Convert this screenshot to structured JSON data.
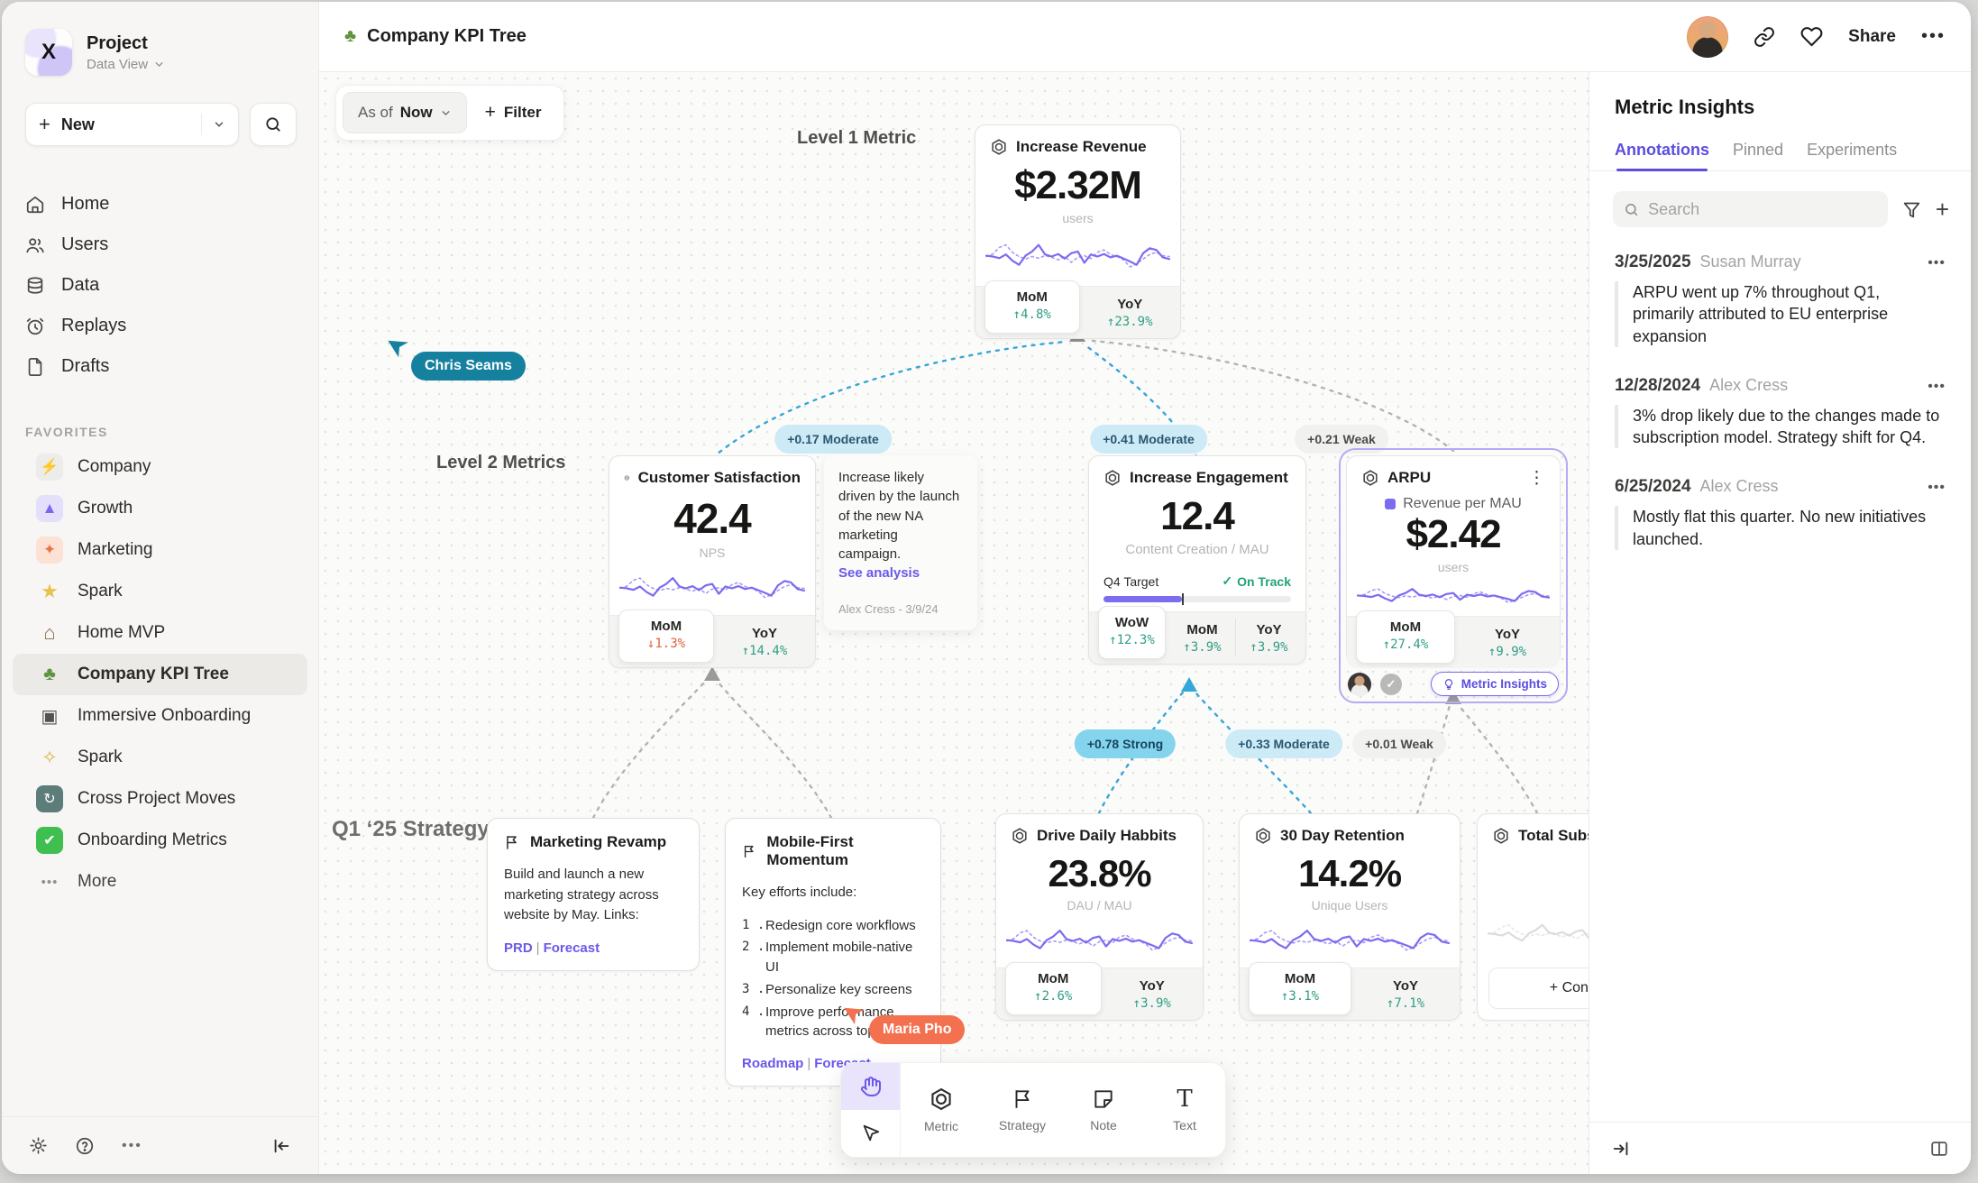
{
  "colors": {
    "accent": "#5b4de0",
    "spark_solid": "#7b6cf0",
    "spark_dashed": "#a79bf5",
    "positive": "#2f9e86",
    "negative": "#e2623c",
    "edge_blue": "#35a6d8",
    "edge_gray": "#b3b3b1",
    "cursor_teal": "#15819f",
    "cursor_orange": "#f3714e",
    "pill_moderate": "#cdeaf7",
    "pill_strong": "#84d4ee",
    "pill_weak": "#f1f1ef"
  },
  "sparkline": {
    "solid": [
      0.52,
      0.5,
      0.46,
      0.55,
      0.4,
      0.3,
      0.52,
      0.62,
      0.78,
      0.55,
      0.5,
      0.56,
      0.45,
      0.58,
      0.62,
      0.35,
      0.55,
      0.5,
      0.56,
      0.48,
      0.52,
      0.45,
      0.38,
      0.3,
      0.58,
      0.7,
      0.66,
      0.48,
      0.44
    ],
    "dashed": [
      0.5,
      0.56,
      0.72,
      0.78,
      0.6,
      0.5,
      0.44,
      0.5,
      0.46,
      0.52,
      0.48,
      0.42,
      0.5,
      0.36,
      0.48,
      0.52,
      0.45,
      0.6,
      0.66,
      0.55,
      0.5,
      0.42,
      0.25,
      0.32,
      0.44,
      0.55,
      0.6,
      0.52,
      0.5
    ]
  },
  "sidebar": {
    "project_title": "Project",
    "project_view": "Data View",
    "new_label": "New",
    "nav": [
      {
        "label": "Home"
      },
      {
        "label": "Users"
      },
      {
        "label": "Data"
      },
      {
        "label": "Replays"
      },
      {
        "label": "Drafts"
      }
    ],
    "favorites_label": "FAVORITES",
    "favorites": [
      {
        "label": "Company",
        "glyph": "⚡",
        "tile_bg": "#ececea",
        "glyph_color": "#3a3a38"
      },
      {
        "label": "Growth",
        "glyph": "▲",
        "tile_bg": "#e4e0fb",
        "glyph_color": "#7a68f0"
      },
      {
        "label": "Marketing",
        "glyph": "✦",
        "tile_bg": "#fbe2d4",
        "glyph_color": "#e8764a"
      },
      {
        "label": "Spark",
        "glyph": "★",
        "tile_bg": "transparent",
        "glyph_color": "#eac04e"
      },
      {
        "label": "Home MVP",
        "glyph": "⌂",
        "tile_bg": "transparent",
        "glyph_color": "#8a6a4a"
      },
      {
        "label": "Company KPI Tree",
        "glyph": "♣",
        "tile_bg": "transparent",
        "glyph_color": "#5f9440",
        "active": true
      },
      {
        "label": "Immersive Onboarding",
        "glyph": "▣",
        "tile_bg": "transparent",
        "glyph_color": "#55524e"
      },
      {
        "label": "Spark",
        "glyph": "✧",
        "tile_bg": "transparent",
        "glyph_color": "#d8b84a"
      },
      {
        "label": "Cross Project Moves",
        "glyph": "↻",
        "tile_bg": "#5d7d7a",
        "glyph_color": "#ffffff"
      },
      {
        "label": "Onboarding Metrics",
        "glyph": "✔",
        "tile_bg": "#3fbf4f",
        "glyph_color": "#ffffff"
      }
    ],
    "more_label": "More"
  },
  "topbar": {
    "title": "Company KPI Tree",
    "share_label": "Share",
    "menu": "•••"
  },
  "canvas": {
    "filter_bar": {
      "as_of": "As of",
      "value": "Now",
      "filter_label": "Filter"
    },
    "levels": {
      "l1": "Level 1 Metric",
      "l2": "Level 2 Metrics",
      "l3": "Q1 ‘25 Strategy"
    },
    "cursors": [
      {
        "name": "Chris Seams"
      },
      {
        "name": "Maria Pho"
      }
    ],
    "edge_labels": [
      {
        "text": "+0.17 Moderate",
        "strength": "moderate"
      },
      {
        "text": "+0.41 Moderate",
        "strength": "moderate"
      },
      {
        "text": "+0.21 Weak",
        "strength": "weak"
      },
      {
        "text": "+0.78 Strong",
        "strength": "strong"
      },
      {
        "text": "+0.33 Moderate",
        "strength": "moderate"
      },
      {
        "text": "+0.01 Weak",
        "strength": "weak"
      }
    ],
    "cards": {
      "revenue": {
        "title": "Increase Revenue",
        "value": "$2.32M",
        "unit": "users",
        "metrics": [
          {
            "label": "MoM",
            "delta": "↑4.8%",
            "dir": "up"
          },
          {
            "label": "YoY",
            "delta": "↑23.9%",
            "dir": "up"
          }
        ]
      },
      "cs": {
        "title": "Customer Satisfaction",
        "value": "42.4",
        "unit": "NPS",
        "metrics": [
          {
            "label": "MoM",
            "delta": "↓1.3%",
            "dir": "down"
          },
          {
            "label": "YoY",
            "delta": "↑14.4%",
            "dir": "up"
          }
        ]
      },
      "engagement": {
        "title": "Increase Engagement",
        "value": "12.4",
        "unit": "Content Creation / MAU",
        "target_label": "Q4 Target",
        "status": "On Track",
        "check": "✓",
        "progress": 42,
        "metrics": [
          {
            "label": "WoW",
            "delta": "↑12.3%",
            "dir": "up"
          },
          {
            "label": "MoM",
            "delta": "↑3.9%",
            "dir": "up"
          },
          {
            "label": "YoY",
            "delta": "↑3.9%",
            "dir": "up"
          }
        ]
      },
      "arpu": {
        "title": "ARPU",
        "legend": "Revenue per MAU",
        "value": "$2.42",
        "unit": "users",
        "menu": "⋮",
        "metrics": [
          {
            "label": "MoM",
            "delta": "↑27.4%",
            "dir": "up"
          },
          {
            "label": "YoY",
            "delta": "↑9.9%",
            "dir": "up"
          }
        ],
        "badge_check": "✓",
        "insights_label": "Metric Insights"
      },
      "ddh": {
        "title": "Drive Daily Habbits",
        "value": "23.8%",
        "unit": "DAU / MAU",
        "metrics": [
          {
            "label": "MoM",
            "delta": "↑2.6%",
            "dir": "up"
          },
          {
            "label": "YoY",
            "delta": "↑3.9%",
            "dir": "up"
          }
        ]
      },
      "retention": {
        "title": "30 Day Retention",
        "value": "14.2%",
        "unit": "Unique Users",
        "metrics": [
          {
            "label": "MoM",
            "delta": "↑3.1%",
            "dir": "up"
          },
          {
            "label": "YoY",
            "delta": "↑7.1%",
            "dir": "up"
          }
        ]
      },
      "totalsub": {
        "title": "Total Subscript",
        "connect_label": "+ Connect"
      }
    },
    "note": {
      "text": "Increase likely driven by the launch of the new NA marketing campaign.",
      "link": "See analysis",
      "author": "Alex Cress - 3/9/24"
    },
    "strategies": {
      "mr": {
        "title": "Marketing Revamp",
        "body": "Build and launch a new marketing strategy across website by May. Links:",
        "link_a": "PRD",
        "sep": "|",
        "link_b": "Forecast"
      },
      "mf": {
        "title": "Mobile-First Momentum",
        "intro": "Key efforts include:",
        "items": [
          "Redesign core workflows",
          "Implement mobile-native UI",
          "Personalize key screens",
          "Improve performance metrics across top flows"
        ],
        "link_a": "Roadmap",
        "sep": "|",
        "link_b": "Forecast"
      }
    },
    "toolbar": {
      "tools": [
        {
          "label": "Metric"
        },
        {
          "label": "Strategy"
        },
        {
          "label": "Note"
        },
        {
          "label": "Text"
        }
      ]
    }
  },
  "insights": {
    "title": "Metric Insights",
    "tabs": [
      {
        "label": "Annotations"
      },
      {
        "label": "Pinned"
      },
      {
        "label": "Experiments"
      }
    ],
    "search_placeholder": "Search",
    "annotations": [
      {
        "date": "3/25/2025",
        "author": "Susan Murray",
        "menu": "•••",
        "text": "ARPU went up 7% throughout Q1, primarily attributed to EU enterprise expansion"
      },
      {
        "date": "12/28/2024",
        "author": "Alex Cress",
        "menu": "•••",
        "text": "3% drop likely due to the changes made to subscription model. Strategy shift for Q4."
      },
      {
        "date": "6/25/2024",
        "author": "Alex Cress",
        "menu": "•••",
        "text": "Mostly flat this quarter. No new initiatives launched."
      }
    ]
  }
}
